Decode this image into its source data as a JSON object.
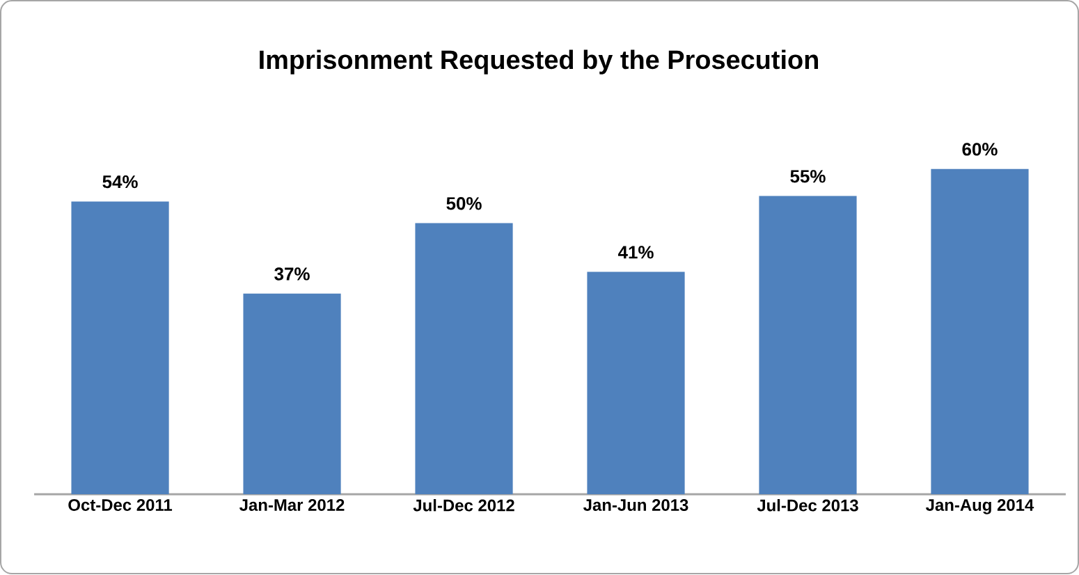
{
  "chart_data": {
    "type": "bar",
    "title": "Imprisonment Requested by the Prosecution",
    "categories": [
      "Oct-Dec 2011",
      "Jan-Mar 2012",
      "Jul-Dec 2012",
      "Jan-Jun 2013",
      "Jul-Dec 2013",
      "Jan-Aug 2014"
    ],
    "values": [
      54,
      37,
      50,
      41,
      55,
      60
    ],
    "value_labels": [
      "54%",
      "37%",
      "50%",
      "41%",
      "55%",
      "60%"
    ],
    "color": "#4f81bd"
  }
}
